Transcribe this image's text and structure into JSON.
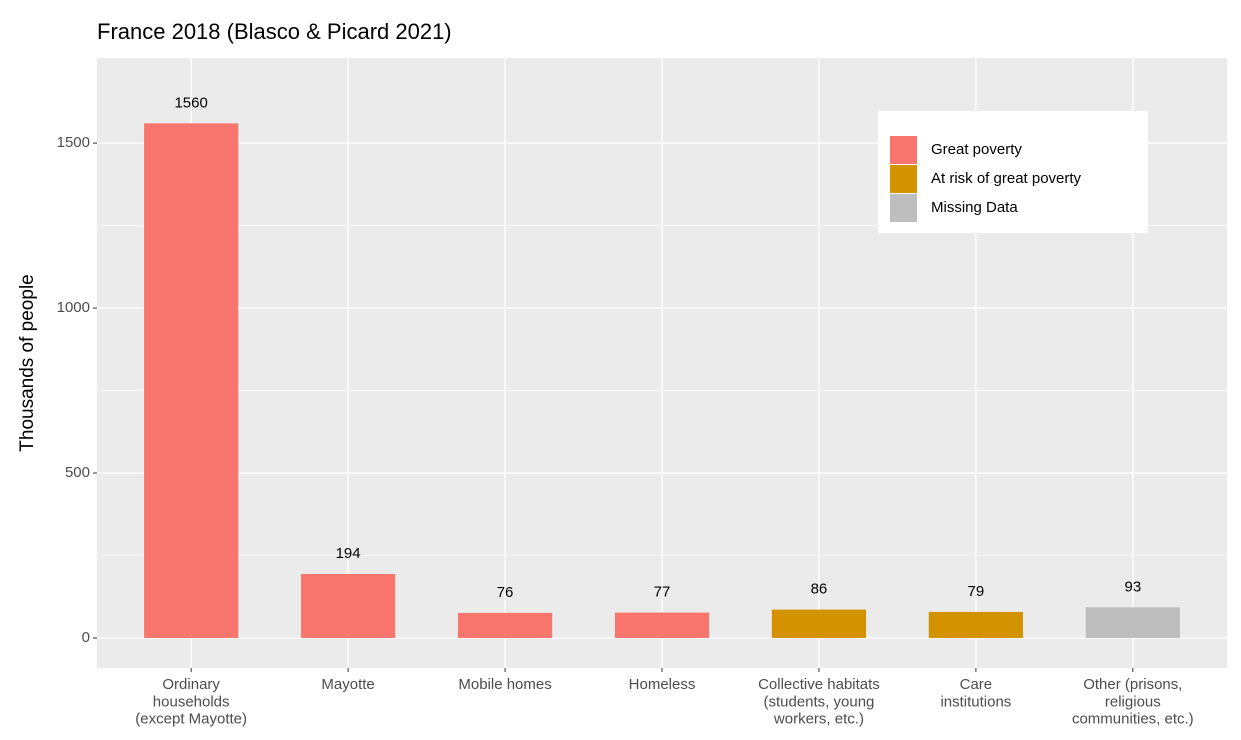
{
  "chart_data": {
    "type": "bar",
    "title": "France 2018 (Blasco & Picard 2021)",
    "y_label": "Thousands of people",
    "categories": [
      "Ordinary\nhouseholds\n(except Mayotte)",
      "Mayotte",
      "Mobile homes",
      "Homeless",
      "Collective habitats\n(students, young\nworkers, etc.)",
      "Care\ninstitutions",
      "Other (prisons,\nreligious\ncommunities, etc.)"
    ],
    "series": [
      {
        "name": "Great poverty",
        "color": "#f8766d",
        "values": [
          1560,
          194,
          76,
          77,
          null,
          null,
          null
        ]
      },
      {
        "name": "At risk of great poverty",
        "color": "#d39200",
        "values": [
          null,
          null,
          null,
          null,
          86,
          79,
          null
        ]
      },
      {
        "name": "Missing Data",
        "color": "#bebebe",
        "values": [
          null,
          null,
          null,
          null,
          null,
          null,
          93
        ]
      }
    ],
    "ylim": [
      -91,
      1758
    ],
    "yticks": [
      0,
      500,
      1000,
      1500
    ],
    "y_minor_ticks": [
      250,
      750,
      1250
    ],
    "grid": true,
    "legend_position": "top-right"
  }
}
